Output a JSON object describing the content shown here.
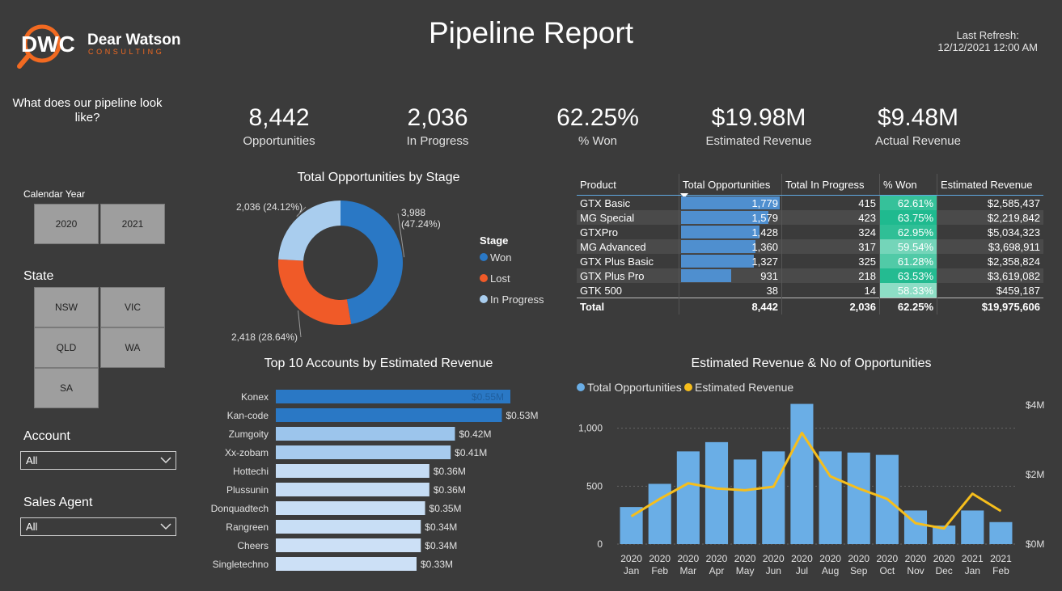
{
  "header": {
    "title": "Pipeline Report",
    "refresh_label": "Last Refresh:",
    "refresh_value": "12/12/2021 12:00 AM",
    "logo_letters": "DWC",
    "logo_name": "Dear Watson",
    "logo_sub": "CONSULTING"
  },
  "sidebar": {
    "question": "What does our pipeline look like?",
    "year_label": "Calendar Year",
    "years": [
      "2020",
      "2021"
    ],
    "state_label": "State",
    "states": [
      "NSW",
      "VIC",
      "QLD",
      "WA",
      "SA"
    ],
    "account_label": "Account",
    "account_value": "All",
    "agent_label": "Sales Agent",
    "agent_value": "All"
  },
  "kpis": [
    {
      "value": "8,442",
      "label": "Opportunities"
    },
    {
      "value": "2,036",
      "label": "In Progress"
    },
    {
      "value": "62.25%",
      "label": "% Won"
    },
    {
      "value": "$19.98M",
      "label": "Estimated Revenue"
    },
    {
      "value": "$9.48M",
      "label": "Actual Revenue"
    }
  ],
  "colors": {
    "background": "#3b3b3b",
    "won": "#2a78c5",
    "lost": "#f05a28",
    "in_progress": "#a9cdee",
    "line": "#f6be1c",
    "bar": "#6aaee6"
  },
  "chart_data": [
    {
      "type": "pie",
      "title": "Total Opportunities by Stage",
      "legend_title": "Stage",
      "legend": "right",
      "slices": [
        {
          "label": "Won",
          "value": 3988,
          "pct": "47.24%",
          "display": "3,988"
        },
        {
          "label": "Lost",
          "value": 2418,
          "pct": "28.64%",
          "display": "2,418"
        },
        {
          "label": "In Progress",
          "value": 2036,
          "pct": "24.12%",
          "display": "2,036"
        }
      ]
    },
    {
      "type": "bar",
      "title": "Top 10 Accounts by Estimated Revenue",
      "categories": [
        "Konex",
        "Kan-code",
        "Zumgoity",
        "Xx-zobam",
        "Hottechi",
        "Plussunin",
        "Donquadtech",
        "Rangreen",
        "Cheers",
        "Singletechno"
      ],
      "values": [
        0.55,
        0.53,
        0.42,
        0.41,
        0.36,
        0.36,
        0.35,
        0.34,
        0.34,
        0.33
      ],
      "labels": [
        "$0.55M",
        "$0.53M",
        "$0.42M",
        "$0.41M",
        "$0.36M",
        "$0.36M",
        "$0.35M",
        "$0.34M",
        "$0.34M",
        "$0.33M"
      ]
    },
    {
      "type": "table",
      "columns": [
        "Product",
        "Total Opportunities",
        "Total In Progress",
        "% Won",
        "Estimated Revenue"
      ],
      "rows": [
        {
          "product": "GTX Basic",
          "opps": 1779,
          "opps_label": "1,779",
          "inprog": "415",
          "won": 62.61,
          "won_label": "62.61%",
          "rev": "$2,585,437"
        },
        {
          "product": "MG Special",
          "opps": 1579,
          "opps_label": "1,579",
          "inprog": "423",
          "won": 63.75,
          "won_label": "63.75%",
          "rev": "$2,219,842"
        },
        {
          "product": "GTXPro",
          "opps": 1428,
          "opps_label": "1,428",
          "inprog": "324",
          "won": 62.95,
          "won_label": "62.95%",
          "rev": "$5,034,323"
        },
        {
          "product": "MG Advanced",
          "opps": 1360,
          "opps_label": "1,360",
          "inprog": "317",
          "won": 59.54,
          "won_label": "59.54%",
          "rev": "$3,698,911"
        },
        {
          "product": "GTX Plus Basic",
          "opps": 1327,
          "opps_label": "1,327",
          "inprog": "325",
          "won": 61.28,
          "won_label": "61.28%",
          "rev": "$2,358,824"
        },
        {
          "product": "GTX Plus Pro",
          "opps": 931,
          "opps_label": "931",
          "inprog": "218",
          "won": 63.53,
          "won_label": "63.53%",
          "rev": "$3,619,082"
        },
        {
          "product": "GTK 500",
          "opps": 38,
          "opps_label": "38",
          "inprog": "14",
          "won": 58.33,
          "won_label": "58.33%",
          "rev": "$459,187"
        }
      ],
      "total": {
        "product": "Total",
        "opps": "8,442",
        "inprog": "2,036",
        "won": "62.25%",
        "rev": "$19,975,606"
      }
    },
    {
      "type": "bar",
      "title": "Estimated Revenue & No of Opportunities",
      "legend": "top-left",
      "categories": [
        "Jan",
        "Feb",
        "Mar",
        "Apr",
        "May",
        "Jun",
        "Jul",
        "Aug",
        "Sep",
        "Oct",
        "Nov",
        "Dec",
        "Jan",
        "Feb"
      ],
      "years": [
        "2020",
        "2020",
        "2020",
        "2020",
        "2020",
        "2020",
        "2020",
        "2020",
        "2020",
        "2020",
        "2020",
        "2020",
        "2021",
        "2021"
      ],
      "series": [
        {
          "name": "Total Opportunities",
          "type": "bar",
          "axis": "left",
          "values": [
            320,
            520,
            800,
            880,
            730,
            800,
            1210,
            800,
            790,
            770,
            290,
            160,
            290,
            190
          ]
        },
        {
          "name": "Estimated Revenue",
          "type": "line",
          "axis": "right",
          "values": [
            0.8,
            1.3,
            1.75,
            1.6,
            1.55,
            1.65,
            3.2,
            1.95,
            1.6,
            1.3,
            0.6,
            0.45,
            1.45,
            0.95
          ]
        }
      ],
      "y_left": {
        "ticks": [
          0,
          500,
          1000
        ],
        "tick_labels": [
          "0",
          "500",
          "1,000"
        ],
        "range": [
          0,
          1200
        ]
      },
      "y_right": {
        "ticks": [
          0,
          2,
          4
        ],
        "tick_labels": [
          "$0M",
          "$2M",
          "$4M"
        ],
        "range": [
          0,
          4
        ]
      }
    }
  ]
}
